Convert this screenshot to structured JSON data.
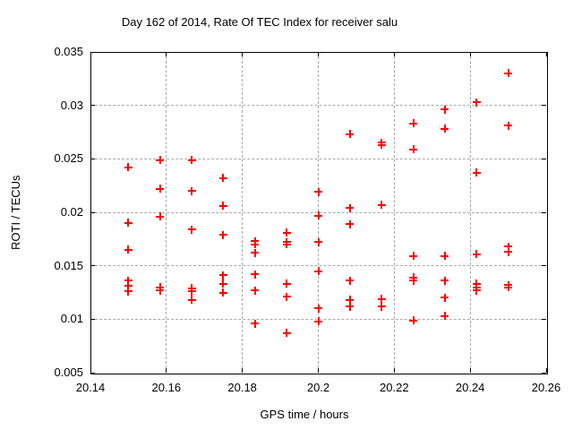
{
  "chart": {
    "title": "Day 162 of 2014, Rate Of TEC Index for receiver salu",
    "xlabel": "GPS time / hours",
    "ylabel": "ROTI / TECUs"
  },
  "chart_data": {
    "type": "scatter",
    "title": "Day 162 of 2014, Rate Of TEC Index for receiver salu",
    "xlabel": "GPS time / hours",
    "ylabel": "ROTI / TECUs",
    "xlim": [
      20.14,
      20.26
    ],
    "ylim": [
      0.005,
      0.035
    ],
    "xticks": [
      20.14,
      20.16,
      20.18,
      20.2,
      20.22,
      20.24,
      20.26
    ],
    "xtick_labels": [
      "20.14",
      "20.16",
      "20.18",
      "20.2",
      "20.22",
      "20.24",
      "20.26"
    ],
    "yticks": [
      0.005,
      0.01,
      0.015,
      0.02,
      0.025,
      0.03,
      0.035
    ],
    "ytick_labels": [
      "0.005",
      "0.01",
      "0.015",
      "0.02",
      "0.025",
      "0.03",
      "0.035"
    ],
    "grid": true,
    "legend": "none",
    "marker": "plus",
    "marker_color": "#ff0000",
    "series": [
      {
        "name": "ROTI",
        "points": [
          [
            20.15,
            0.0242
          ],
          [
            20.15,
            0.019
          ],
          [
            20.15,
            0.0165
          ],
          [
            20.15,
            0.0136
          ],
          [
            20.15,
            0.0131
          ],
          [
            20.15,
            0.0126
          ],
          [
            20.1583,
            0.0249
          ],
          [
            20.1583,
            0.0222
          ],
          [
            20.1583,
            0.0196
          ],
          [
            20.1583,
            0.013
          ],
          [
            20.1583,
            0.0127
          ],
          [
            20.1667,
            0.0249
          ],
          [
            20.1667,
            0.022
          ],
          [
            20.1667,
            0.0184
          ],
          [
            20.1667,
            0.0129
          ],
          [
            20.1667,
            0.0126
          ],
          [
            20.1667,
            0.0118
          ],
          [
            20.175,
            0.0232
          ],
          [
            20.175,
            0.0206
          ],
          [
            20.175,
            0.0179
          ],
          [
            20.175,
            0.0141
          ],
          [
            20.175,
            0.0133
          ],
          [
            20.175,
            0.0125
          ],
          [
            20.1833,
            0.0173
          ],
          [
            20.1833,
            0.017
          ],
          [
            20.1833,
            0.0162
          ],
          [
            20.1833,
            0.0142
          ],
          [
            20.1833,
            0.0127
          ],
          [
            20.1833,
            0.0096
          ],
          [
            20.1917,
            0.0181
          ],
          [
            20.1917,
            0.0172
          ],
          [
            20.1917,
            0.017
          ],
          [
            20.1917,
            0.0133
          ],
          [
            20.1917,
            0.0121
          ],
          [
            20.1917,
            0.0087
          ],
          [
            20.2,
            0.0219
          ],
          [
            20.2,
            0.0197
          ],
          [
            20.2,
            0.0172
          ],
          [
            20.2,
            0.0145
          ],
          [
            20.2,
            0.011
          ],
          [
            20.2,
            0.0098
          ],
          [
            20.2083,
            0.0273
          ],
          [
            20.2083,
            0.0204
          ],
          [
            20.2083,
            0.0189
          ],
          [
            20.2083,
            0.0136
          ],
          [
            20.2083,
            0.0118
          ],
          [
            20.2083,
            0.0112
          ],
          [
            20.2167,
            0.0265
          ],
          [
            20.2167,
            0.0263
          ],
          [
            20.2167,
            0.0207
          ],
          [
            20.2167,
            0.0119
          ],
          [
            20.2167,
            0.0112
          ],
          [
            20.225,
            0.0283
          ],
          [
            20.225,
            0.0259
          ],
          [
            20.225,
            0.0159
          ],
          [
            20.225,
            0.0139
          ],
          [
            20.225,
            0.0136
          ],
          [
            20.225,
            0.0099
          ],
          [
            20.2333,
            0.0296
          ],
          [
            20.2333,
            0.0278
          ],
          [
            20.2333,
            0.0159
          ],
          [
            20.2333,
            0.0136
          ],
          [
            20.2333,
            0.012
          ],
          [
            20.2333,
            0.0103
          ],
          [
            20.2417,
            0.0303
          ],
          [
            20.2417,
            0.0237
          ],
          [
            20.2417,
            0.0161
          ],
          [
            20.2417,
            0.0133
          ],
          [
            20.2417,
            0.013
          ],
          [
            20.2417,
            0.0127
          ],
          [
            20.25,
            0.033
          ],
          [
            20.25,
            0.0281
          ],
          [
            20.25,
            0.0168
          ],
          [
            20.25,
            0.0163
          ],
          [
            20.25,
            0.0132
          ],
          [
            20.25,
            0.013
          ]
        ]
      }
    ]
  }
}
